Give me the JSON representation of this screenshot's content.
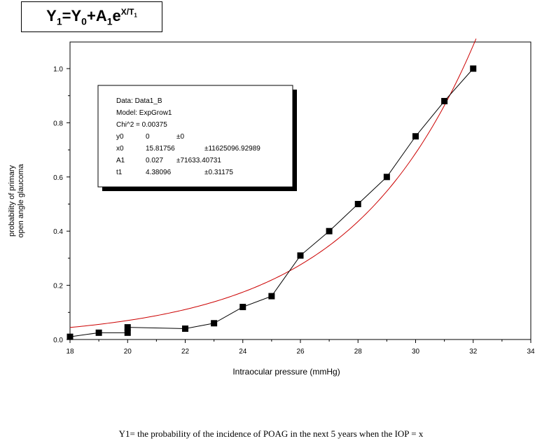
{
  "equation": {
    "y": "Y",
    "y_sub": "1",
    "eq": "=",
    "y0": "Y",
    "y0_sub": "0",
    "plus": "+",
    "a": "A",
    "a_sub": "1",
    "e": "e",
    "exp_x": "X/T",
    "exp_sub": "1"
  },
  "caption": "Y1= the probability of the incidence of POAG in the next 5 years when the IOP = x",
  "info_box": {
    "lines": [
      {
        "label": "Data: Data1_B",
        "value": "",
        "error": ""
      },
      {
        "label": "Model: ExpGrow1",
        "value": "",
        "error": ""
      },
      {
        "label": "Chi^2 = 0.00375",
        "value": "",
        "error": ""
      },
      {
        "label": "y0",
        "value": "0",
        "error": "±0"
      },
      {
        "label": "x0",
        "value": "15.81756",
        "error": "±11625096.92989"
      },
      {
        "label": "A1",
        "value": "0.027",
        "error": "±71633.40731"
      },
      {
        "label": "t1",
        "value": "4.38096",
        "error": "±0.31175"
      }
    ]
  },
  "chart_data": {
    "type": "scatter",
    "xlabel": "Intraocular pressure (mmHg)",
    "ylabel": [
      "probability of primary",
      "open angle glaucoma"
    ],
    "xlim": [
      18,
      34
    ],
    "ylim": [
      0,
      1.0
    ],
    "xticks": [
      "18",
      "20",
      "22",
      "24",
      "26",
      "28",
      "30",
      "32",
      "34"
    ],
    "yticks": [
      "0.0",
      "0.2",
      "0.4",
      "0.6",
      "0.8",
      "1.0"
    ],
    "series": [
      {
        "x": [
          18,
          19,
          20,
          20,
          22,
          23,
          24,
          25,
          26,
          27,
          28,
          29,
          30,
          31,
          32
        ],
        "y": [
          0.01,
          0.025,
          0.025,
          0.045,
          0.04,
          0.06,
          0.12,
          0.16,
          0.31,
          0.4,
          0.5,
          0.6,
          0.75,
          0.88,
          1.0
        ],
        "color": "#000000",
        "marker": "square"
      },
      {
        "fit": "exp",
        "A1": 0.027,
        "t1": 4.38096,
        "x0": 15.81756,
        "y0": 0,
        "x": [
          18,
          32.1
        ],
        "color": "#cc0000"
      }
    ],
    "grid": false
  }
}
